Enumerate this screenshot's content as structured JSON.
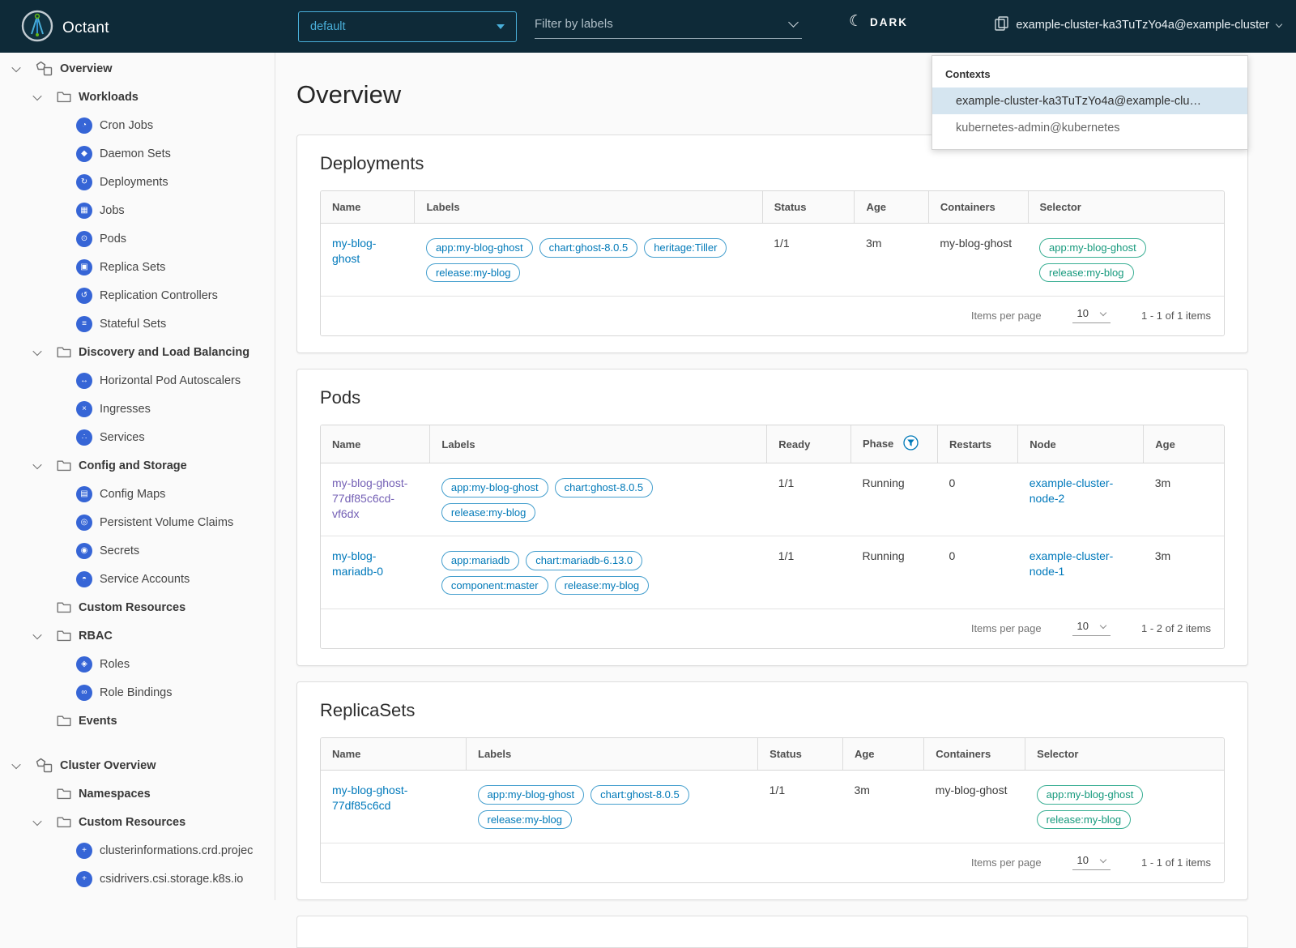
{
  "navbar": {
    "app_name": "Octant",
    "namespace_selector": {
      "value": "default"
    },
    "filter_input": {
      "placeholder": "Filter by labels"
    },
    "theme_toggle": {
      "label": "DARK",
      "icon": "moon"
    },
    "context_button": {
      "label": "example-cluster-ka3TuTzYo4a@example-cluster"
    }
  },
  "context_dropdown": {
    "title": "Contexts",
    "items": [
      {
        "label": "example-cluster-ka3TuTzYo4a@example-clu…",
        "selected": true
      },
      {
        "label": "kubernetes-admin@kubernetes",
        "selected": false
      }
    ]
  },
  "sidebar": {
    "items": [
      {
        "label": "Overview",
        "type": "section",
        "chevron": true,
        "icon": "overview-icon"
      },
      {
        "label": "Workloads",
        "type": "group",
        "chevron": true,
        "icon": "folder-icon"
      },
      {
        "label": "Cron Jobs",
        "type": "leaf",
        "icon": "cronjobs-icon",
        "glyph": "◔"
      },
      {
        "label": "Daemon Sets",
        "type": "leaf",
        "icon": "daemonsets-icon",
        "glyph": "◆"
      },
      {
        "label": "Deployments",
        "type": "leaf",
        "icon": "deployments-icon",
        "glyph": "↻"
      },
      {
        "label": "Jobs",
        "type": "leaf",
        "icon": "jobs-icon",
        "glyph": "▦"
      },
      {
        "label": "Pods",
        "type": "leaf",
        "icon": "pods-icon",
        "glyph": "⊙"
      },
      {
        "label": "Replica Sets",
        "type": "leaf",
        "icon": "replicasets-icon",
        "glyph": "▣"
      },
      {
        "label": "Replication Controllers",
        "type": "leaf",
        "icon": "replicationcontrollers-icon",
        "glyph": "↺"
      },
      {
        "label": "Stateful Sets",
        "type": "leaf",
        "icon": "statefulsets-icon",
        "glyph": "≡"
      },
      {
        "label": "Discovery and Load Balancing",
        "type": "group",
        "chevron": true,
        "icon": "folder-icon"
      },
      {
        "label": "Horizontal Pod Autoscalers",
        "type": "leaf",
        "icon": "hpa-icon",
        "glyph": "↔"
      },
      {
        "label": "Ingresses",
        "type": "leaf",
        "icon": "ingresses-icon",
        "glyph": "×"
      },
      {
        "label": "Services",
        "type": "leaf",
        "icon": "services-icon",
        "glyph": "∴"
      },
      {
        "label": "Config and Storage",
        "type": "group",
        "chevron": true,
        "icon": "folder-icon"
      },
      {
        "label": "Config Maps",
        "type": "leaf",
        "icon": "configmaps-icon",
        "glyph": "▤"
      },
      {
        "label": "Persistent Volume Claims",
        "type": "leaf",
        "icon": "pvc-icon",
        "glyph": "◎"
      },
      {
        "label": "Secrets",
        "type": "leaf",
        "icon": "secrets-icon",
        "glyph": "◉"
      },
      {
        "label": "Service Accounts",
        "type": "leaf",
        "icon": "serviceaccounts-icon",
        "glyph": "◓"
      },
      {
        "label": "Custom Resources",
        "type": "group",
        "chevron": false,
        "icon": "folder-icon"
      },
      {
        "label": "RBAC",
        "type": "group",
        "chevron": true,
        "icon": "folder-icon"
      },
      {
        "label": "Roles",
        "type": "leaf",
        "icon": "roles-icon",
        "glyph": "◈"
      },
      {
        "label": "Role Bindings",
        "type": "leaf",
        "icon": "rolebindings-icon",
        "glyph": "∞"
      },
      {
        "label": "Events",
        "type": "group",
        "chevron": false,
        "icon": "folder-icon"
      },
      {
        "label": "Cluster Overview",
        "type": "section",
        "chevron": true,
        "icon": "overview-icon",
        "gap_before": true
      },
      {
        "label": "Namespaces",
        "type": "group",
        "chevron": false,
        "icon": "folder-icon"
      },
      {
        "label": "Custom Resources",
        "type": "group",
        "chevron": true,
        "icon": "folder-icon"
      },
      {
        "label": "clusterinformations.crd.projec",
        "type": "leaf",
        "icon": "crd-icon",
        "glyph": "+"
      },
      {
        "label": "csidrivers.csi.storage.k8s.io",
        "type": "leaf",
        "icon": "crd-icon",
        "glyph": "+"
      }
    ]
  },
  "page": {
    "title": "Overview"
  },
  "cards": [
    {
      "title": "Deployments",
      "columns": [
        {
          "label": "Name",
          "width": "10.4%"
        },
        {
          "label": "Labels",
          "width": "38.5%"
        },
        {
          "label": "Status",
          "width": "10.2%"
        },
        {
          "label": "Age",
          "width": "8.2%"
        },
        {
          "label": "Containers",
          "width": "11.0%"
        },
        {
          "label": "Selector",
          "width": "21.7%"
        }
      ],
      "rows": [
        [
          {
            "type": "link",
            "text": "my-blog-ghost"
          },
          {
            "type": "tags",
            "variant": "blue",
            "tags": [
              "app:my-blog-ghost",
              "chart:ghost-8.0.5",
              "heritage:Tiller",
              "release:my-blog"
            ]
          },
          {
            "type": "text",
            "text": "1/1"
          },
          {
            "type": "text",
            "text": "3m"
          },
          {
            "type": "text",
            "text": "my-blog-ghost"
          },
          {
            "type": "tags",
            "variant": "teal",
            "tags": [
              "app:my-blog-ghost",
              "release:my-blog"
            ]
          }
        ]
      ],
      "footer": {
        "items_per_page_label": "Items per page",
        "page_size": "10",
        "range": "1 - 1 of 1 items"
      }
    },
    {
      "title": "Pods",
      "columns": [
        {
          "label": "Name",
          "width": "12.1%"
        },
        {
          "label": "Labels",
          "width": "37.3%"
        },
        {
          "label": "Ready",
          "width": "9.3%"
        },
        {
          "label": "Phase",
          "width": "9.6%",
          "filter_icon": true
        },
        {
          "label": "Restarts",
          "width": "8.9%"
        },
        {
          "label": "Node",
          "width": "13.9%"
        },
        {
          "label": "Age",
          "width": "8.9%"
        }
      ],
      "rows": [
        [
          {
            "type": "link",
            "text": "my-blog-ghost-77df85c6cd-vf6dx",
            "visited": true
          },
          {
            "type": "tags",
            "variant": "blue",
            "tags": [
              "app:my-blog-ghost",
              "chart:ghost-8.0.5",
              "release:my-blog"
            ]
          },
          {
            "type": "text",
            "text": "1/1"
          },
          {
            "type": "text",
            "text": "Running"
          },
          {
            "type": "text",
            "text": "0"
          },
          {
            "type": "link",
            "text": "example-cluster-node-2"
          },
          {
            "type": "text",
            "text": "3m"
          }
        ],
        [
          {
            "type": "link",
            "text": "my-blog-mariadb-0"
          },
          {
            "type": "tags",
            "variant": "blue",
            "tags": [
              "app:mariadb",
              "chart:mariadb-6.13.0",
              "component:master",
              "release:my-blog"
            ]
          },
          {
            "type": "text",
            "text": "1/1"
          },
          {
            "type": "text",
            "text": "Running"
          },
          {
            "type": "text",
            "text": "0"
          },
          {
            "type": "link",
            "text": "example-cluster-node-1"
          },
          {
            "type": "text",
            "text": "3m"
          }
        ]
      ],
      "footer": {
        "items_per_page_label": "Items per page",
        "page_size": "10",
        "range": "1 - 2 of 2 items"
      }
    },
    {
      "title": "ReplicaSets",
      "columns": [
        {
          "label": "Name",
          "width": "16.1%"
        },
        {
          "label": "Labels",
          "width": "32.3%"
        },
        {
          "label": "Status",
          "width": "9.4%"
        },
        {
          "label": "Age",
          "width": "9.0%"
        },
        {
          "label": "Containers",
          "width": "11.2%"
        },
        {
          "label": "Selector",
          "width": "22.0%"
        }
      ],
      "rows": [
        [
          {
            "type": "link",
            "text": "my-blog-ghost-77df85c6cd"
          },
          {
            "type": "tags",
            "variant": "blue",
            "tags": [
              "app:my-blog-ghost",
              "chart:ghost-8.0.5",
              "release:my-blog"
            ]
          },
          {
            "type": "text",
            "text": "1/1"
          },
          {
            "type": "text",
            "text": "3m"
          },
          {
            "type": "text",
            "text": "my-blog-ghost"
          },
          {
            "type": "tags",
            "variant": "teal",
            "tags": [
              "app:my-blog-ghost",
              "release:my-blog"
            ]
          }
        ]
      ],
      "footer": {
        "items_per_page_label": "Items per page",
        "page_size": "10",
        "range": "1 - 1 of 1 items"
      }
    }
  ],
  "colors": {
    "navbar_bg": "#0e2a38",
    "accent_blue": "#49afd9",
    "link_blue": "#0079bb",
    "link_visited": "#7460b5",
    "tag_blue": "#0079b8",
    "tag_teal": "#15997c",
    "selected_item_bg": "#d5e5f0",
    "k8s_icon_blue": "#3665d6"
  }
}
